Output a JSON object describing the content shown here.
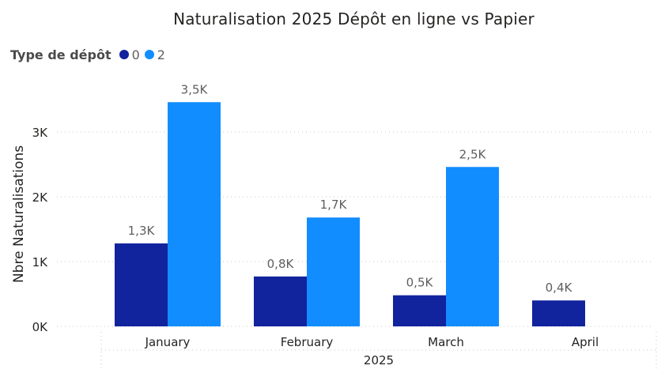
{
  "chart_data": {
    "type": "bar",
    "title": "Naturalisation 2025 Dépôt en ligne vs Papier",
    "legend_title": "Type de dépôt",
    "legend_placement": "top-left",
    "categories": [
      "January",
      "February",
      "March",
      "April"
    ],
    "x_group_label": "2025",
    "xlabel": "",
    "ylabel": "Nbre Naturalisations",
    "ylim": [
      0,
      3500
    ],
    "yticks": [
      0,
      1000,
      2000,
      3000
    ],
    "ytick_labels": [
      "0K",
      "1K",
      "2K",
      "3K"
    ],
    "grid": true,
    "series": [
      {
        "name": "0",
        "color": "#12239E",
        "values": [
          1280,
          770,
          480,
          400
        ],
        "labels": [
          "1,3K",
          "0,8K",
          "0,5K",
          "0,4K"
        ]
      },
      {
        "name": "2",
        "color": "#118DFF",
        "values": [
          3460,
          1680,
          2460,
          null
        ],
        "labels": [
          "3,5K",
          "1,7K",
          "2,5K",
          null
        ]
      }
    ]
  }
}
